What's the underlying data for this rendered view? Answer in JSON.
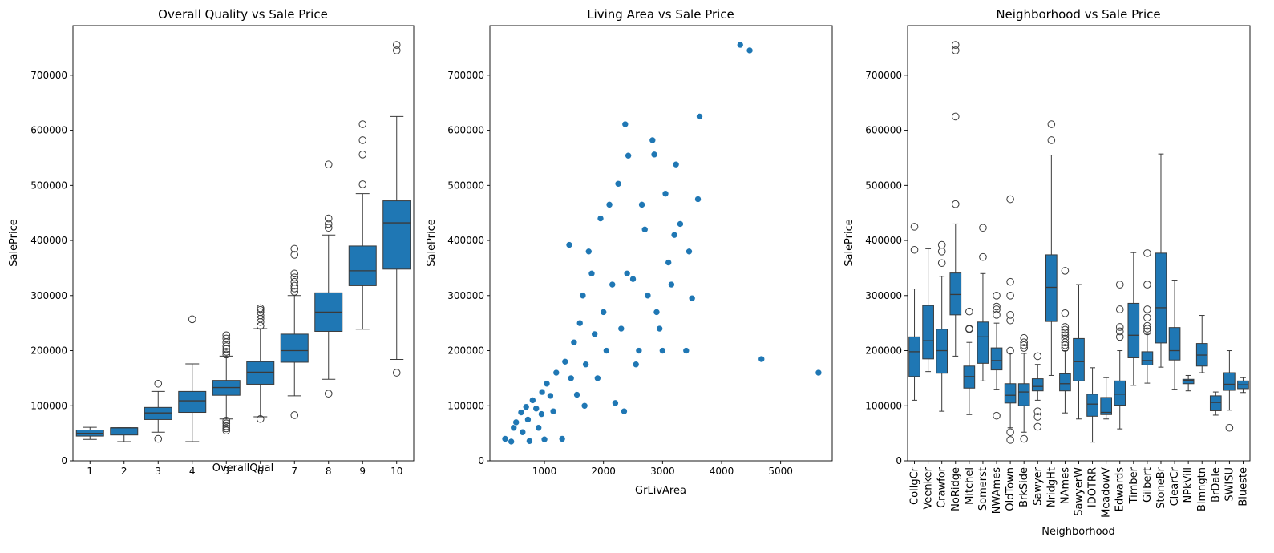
{
  "chart_data": [
    {
      "type": "box",
      "title": "Overall Quality vs Sale Price",
      "xlabel": "OverallQual",
      "ylabel": "SalePrice",
      "ylim": [
        0,
        790000
      ],
      "yticks": [
        0,
        100000,
        200000,
        300000,
        400000,
        500000,
        600000,
        700000
      ],
      "color": "#1f77b4",
      "categories": [
        "1",
        "2",
        "3",
        "4",
        "5",
        "6",
        "7",
        "8",
        "9",
        "10"
      ],
      "boxes": [
        {
          "whislo": 39000,
          "q1": 45000,
          "med": 50000,
          "q3": 56000,
          "whishi": 61000,
          "fliers": []
        },
        {
          "whislo": 35000,
          "q1": 47000,
          "med": 60000,
          "q3": 60000,
          "whishi": 60000,
          "fliers": []
        },
        {
          "whislo": 52000,
          "q1": 75000,
          "med": 87000,
          "q3": 97000,
          "whishi": 126000,
          "fliers": [
            40000,
            140000
          ]
        },
        {
          "whislo": 35000,
          "q1": 88000,
          "med": 109000,
          "q3": 126000,
          "whishi": 176000,
          "fliers": [
            257000
          ]
        },
        {
          "whislo": 76000,
          "q1": 119000,
          "med": 133000,
          "q3": 146000,
          "whishi": 190000,
          "fliers": [
            55000,
            59000,
            63000,
            68000,
            73000,
            193000,
            198000,
            203000,
            208000,
            215000,
            222000,
            228000
          ]
        },
        {
          "whislo": 80000,
          "q1": 139000,
          "med": 161000,
          "q3": 180000,
          "whishi": 240000,
          "fliers": [
            76000,
            245000,
            252000,
            258000,
            264000,
            270000,
            274000,
            277000
          ]
        },
        {
          "whislo": 118000,
          "q1": 179000,
          "med": 200000,
          "q3": 230000,
          "whishi": 300000,
          "fliers": [
            83000,
            307000,
            313000,
            318000,
            325000,
            333000,
            340000,
            374000,
            385000
          ]
        },
        {
          "whislo": 148000,
          "q1": 235000,
          "med": 270000,
          "q3": 305000,
          "whishi": 410000,
          "fliers": [
            122000,
            423000,
            430000,
            440000,
            538000
          ]
        },
        {
          "whislo": 239000,
          "q1": 318000,
          "med": 345000,
          "q3": 390000,
          "whishi": 485000,
          "fliers": [
            502000,
            556000,
            582000,
            611000
          ]
        },
        {
          "whislo": 184000,
          "q1": 348000,
          "med": 432000,
          "q3": 472000,
          "whishi": 625000,
          "fliers": [
            160000,
            745000,
            755000
          ]
        }
      ]
    },
    {
      "type": "scatter",
      "title": "Living Area vs Sale Price",
      "xlabel": "GrLivArea",
      "ylabel": "SalePrice",
      "xlim": [
        76,
        5874
      ],
      "ylim": [
        0,
        790000
      ],
      "xticks": [
        1000,
        2000,
        3000,
        4000,
        5000
      ],
      "yticks": [
        0,
        100000,
        200000,
        300000,
        400000,
        500000,
        600000,
        700000
      ],
      "color": "#1f77b4",
      "points": [
        [
          334,
          40000
        ],
        [
          438,
          35000
        ],
        [
          480,
          60000
        ],
        [
          520,
          70000
        ],
        [
          605,
          88000
        ],
        [
          630,
          52000
        ],
        [
          690,
          98000
        ],
        [
          720,
          75000
        ],
        [
          747,
          36000
        ],
        [
          800,
          110000
        ],
        [
          860,
          95000
        ],
        [
          900,
          60000
        ],
        [
          950,
          85000
        ],
        [
          960,
          125000
        ],
        [
          1000,
          39000
        ],
        [
          1040,
          140000
        ],
        [
          1100,
          118000
        ],
        [
          1150,
          90000
        ],
        [
          1200,
          160000
        ],
        [
          1300,
          40000
        ],
        [
          1350,
          180000
        ],
        [
          1420,
          392000
        ],
        [
          1450,
          150000
        ],
        [
          1500,
          215000
        ],
        [
          1550,
          120000
        ],
        [
          1600,
          250000
        ],
        [
          1650,
          300000
        ],
        [
          1680,
          100000
        ],
        [
          1700,
          175000
        ],
        [
          1750,
          380000
        ],
        [
          1800,
          340000
        ],
        [
          1850,
          230000
        ],
        [
          1900,
          150000
        ],
        [
          1950,
          440000
        ],
        [
          2000,
          270000
        ],
        [
          2050,
          200000
        ],
        [
          2100,
          465000
        ],
        [
          2150,
          320000
        ],
        [
          2200,
          105000
        ],
        [
          2250,
          503000
        ],
        [
          2300,
          240000
        ],
        [
          2350,
          90000
        ],
        [
          2368,
          611000
        ],
        [
          2400,
          340000
        ],
        [
          2420,
          554000
        ],
        [
          2500,
          330000
        ],
        [
          2550,
          175000
        ],
        [
          2600,
          200000
        ],
        [
          2650,
          465000
        ],
        [
          2700,
          420000
        ],
        [
          2750,
          300000
        ],
        [
          2830,
          582000
        ],
        [
          2860,
          556000
        ],
        [
          2900,
          270000
        ],
        [
          2950,
          240000
        ],
        [
          3000,
          200000
        ],
        [
          3050,
          485000
        ],
        [
          3100,
          360000
        ],
        [
          3150,
          320000
        ],
        [
          3200,
          410000
        ],
        [
          3228,
          538000
        ],
        [
          3300,
          430000
        ],
        [
          3400,
          200000
        ],
        [
          3450,
          380000
        ],
        [
          3500,
          295000
        ],
        [
          3600,
          475000
        ],
        [
          3627,
          625000
        ],
        [
          4316,
          755000
        ],
        [
          4476,
          745000
        ],
        [
          4676,
          184750
        ],
        [
          5642,
          160000
        ]
      ]
    },
    {
      "type": "box",
      "title": "Neighborhood vs Sale Price",
      "xlabel": "Neighborhood",
      "ylabel": "SalePrice",
      "ylim": [
        0,
        790000
      ],
      "yticks": [
        0,
        100000,
        200000,
        300000,
        400000,
        500000,
        600000,
        700000
      ],
      "color": "#1f77b4",
      "categories": [
        "CollgCr",
        "Veenker",
        "Crawfor",
        "NoRidge",
        "Mitchel",
        "Somerst",
        "NWAmes",
        "OldTown",
        "BrkSide",
        "Sawyer",
        "NridgHt",
        "NAmes",
        "SawyerW",
        "IDOTRR",
        "MeadowV",
        "Edwards",
        "Timber",
        "Gilbert",
        "StoneBr",
        "ClearCr",
        "NPkVill",
        "Blmngtn",
        "BrDale",
        "SWISU",
        "Blueste"
      ],
      "boxes": [
        {
          "whislo": 110000,
          "q1": 153000,
          "med": 198000,
          "q3": 225000,
          "whishi": 312000,
          "fliers": [
            383000,
            425000
          ]
        },
        {
          "whislo": 162000,
          "q1": 185000,
          "med": 218000,
          "q3": 282000,
          "whishi": 385000,
          "fliers": []
        },
        {
          "whislo": 90000,
          "q1": 159000,
          "med": 200000,
          "q3": 239000,
          "whishi": 335000,
          "fliers": [
            359000,
            380000,
            392000
          ]
        },
        {
          "whislo": 190000,
          "q1": 265000,
          "med": 302000,
          "q3": 341000,
          "whishi": 430000,
          "fliers": [
            466000,
            625000,
            745000,
            755000
          ]
        },
        {
          "whislo": 84000,
          "q1": 132000,
          "med": 153000,
          "q3": 172000,
          "whishi": 215000,
          "fliers": [
            239000,
            240000,
            271000
          ]
        },
        {
          "whislo": 145000,
          "q1": 177000,
          "med": 225000,
          "q3": 252000,
          "whishi": 340000,
          "fliers": [
            370000,
            423000
          ]
        },
        {
          "whislo": 130000,
          "q1": 165000,
          "med": 182000,
          "q3": 205000,
          "whishi": 250000,
          "fliers": [
            82000,
            265000,
            275000,
            280000,
            300000
          ]
        },
        {
          "whislo": 60000,
          "q1": 105000,
          "med": 119000,
          "q3": 140000,
          "whishi": 195000,
          "fliers": [
            38000,
            52000,
            200000,
            255000,
            265000,
            300000,
            325000,
            475000
          ]
        },
        {
          "whislo": 52000,
          "q1": 100000,
          "med": 125000,
          "q3": 140000,
          "whishi": 195000,
          "fliers": [
            40000,
            205000,
            210000,
            215000,
            223000
          ]
        },
        {
          "whislo": 110000,
          "q1": 127000,
          "med": 135000,
          "q3": 149000,
          "whishi": 175000,
          "fliers": [
            62000,
            80000,
            90000,
            190000
          ]
        },
        {
          "whislo": 155000,
          "q1": 253000,
          "med": 315000,
          "q3": 374000,
          "whishi": 555000,
          "fliers": [
            582000,
            611000
          ]
        },
        {
          "whislo": 87000,
          "q1": 127000,
          "med": 140000,
          "q3": 158000,
          "whishi": 200000,
          "fliers": [
            205000,
            210000,
            215000,
            222000,
            228000,
            233000,
            238000,
            243000,
            268000,
            345000
          ]
        },
        {
          "whislo": 76000,
          "q1": 145000,
          "med": 180000,
          "q3": 222000,
          "whishi": 320000,
          "fliers": []
        },
        {
          "whislo": 34000,
          "q1": 81000,
          "med": 103000,
          "q3": 121000,
          "whishi": 169000,
          "fliers": []
        },
        {
          "whislo": 76000,
          "q1": 84000,
          "med": 88000,
          "q3": 115000,
          "whishi": 151000,
          "fliers": []
        },
        {
          "whislo": 58000,
          "q1": 101000,
          "med": 121000,
          "q3": 145000,
          "whishi": 200000,
          "fliers": [
            225000,
            235000,
            243000,
            275000,
            320000
          ]
        },
        {
          "whislo": 137000,
          "q1": 187000,
          "med": 228000,
          "q3": 286000,
          "whishi": 378000,
          "fliers": []
        },
        {
          "whislo": 141000,
          "q1": 174000,
          "med": 182000,
          "q3": 198000,
          "whishi": 230000,
          "fliers": [
            235000,
            240000,
            245000,
            260000,
            275000,
            320000,
            377000
          ]
        },
        {
          "whislo": 170000,
          "q1": 214000,
          "med": 278000,
          "q3": 377000,
          "whishi": 557000,
          "fliers": []
        },
        {
          "whislo": 130000,
          "q1": 183000,
          "med": 200000,
          "q3": 242000,
          "whishi": 328000,
          "fliers": []
        },
        {
          "whislo": 127000,
          "q1": 140000,
          "med": 146000,
          "q3": 148000,
          "whishi": 155000,
          "fliers": []
        },
        {
          "whislo": 160000,
          "q1": 172000,
          "med": 192000,
          "q3": 213000,
          "whishi": 264000,
          "fliers": []
        },
        {
          "whislo": 83000,
          "q1": 91000,
          "med": 106000,
          "q3": 118000,
          "whishi": 125000,
          "fliers": []
        },
        {
          "whislo": 92000,
          "q1": 128000,
          "med": 139000,
          "q3": 160000,
          "whishi": 200000,
          "fliers": [
            60000
          ]
        },
        {
          "whislo": 124000,
          "q1": 131000,
          "med": 138000,
          "q3": 145000,
          "whishi": 151000,
          "fliers": []
        }
      ]
    }
  ]
}
